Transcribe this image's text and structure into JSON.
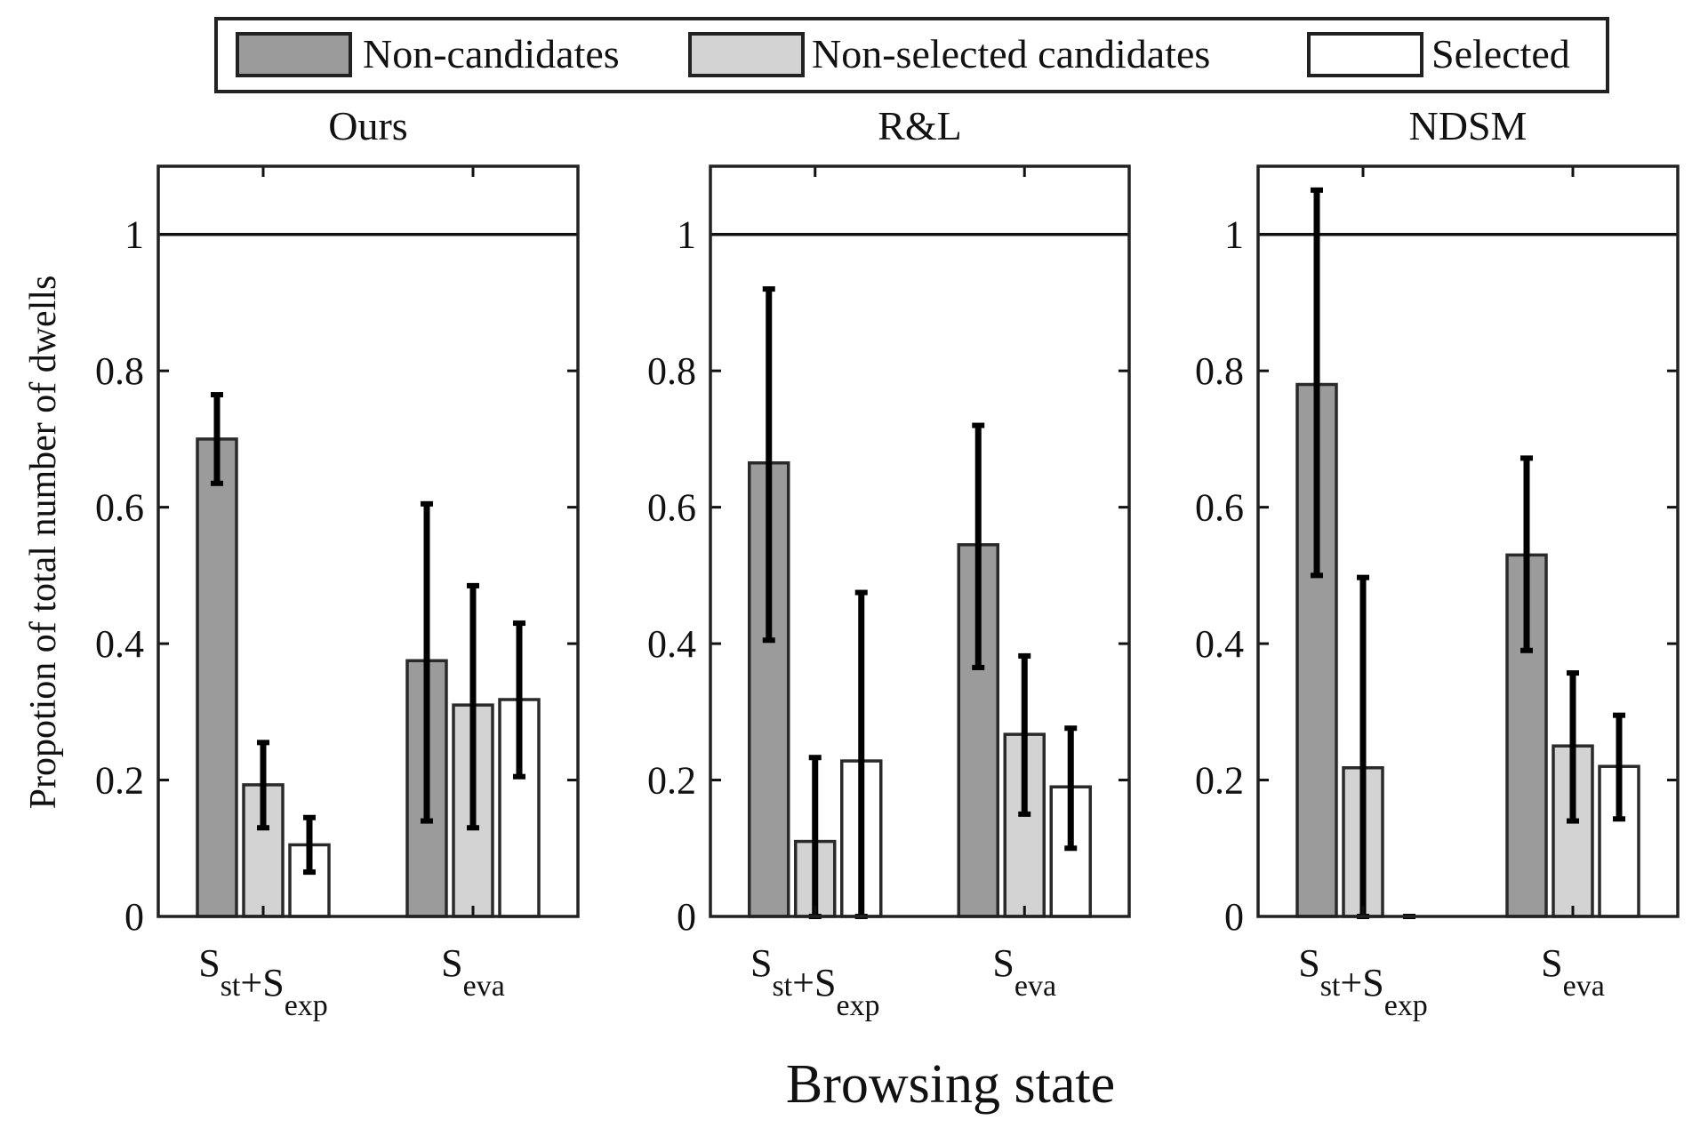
{
  "chart_data": {
    "type": "bar",
    "xlabel": "Browsing state",
    "ylabel": "Propotion of total number of dwells",
    "ylim": [
      0,
      1.1
    ],
    "yticks": [
      "0",
      "0.2",
      "0.4",
      "0.6",
      "0.8",
      "1"
    ],
    "reference_line": 1,
    "legend": {
      "placement": "top",
      "entries": [
        {
          "name": "Non-candidates",
          "color": "#9b9b9b"
        },
        {
          "name": "Non-selected candidates",
          "color": "#d3d3d3"
        },
        {
          "name": "Selected",
          "color": "#ffffff"
        }
      ]
    },
    "categories": [
      {
        "parts": [
          {
            "main": "S",
            "sub": "st"
          },
          {
            "main": "+S",
            "sub": "exp"
          }
        ]
      },
      {
        "parts": [
          {
            "main": "S",
            "sub": "eva"
          }
        ]
      }
    ],
    "panels": [
      {
        "title": "Ours",
        "series": [
          {
            "name": "Non-candidates",
            "values": [
              0.7,
              0.375
            ],
            "err_low": [
              0.635,
              0.14
            ],
            "err_high": [
              0.765,
              0.605
            ]
          },
          {
            "name": "Non-selected candidates",
            "values": [
              0.193,
              0.31
            ],
            "err_low": [
              0.13,
              0.13
            ],
            "err_high": [
              0.255,
              0.485
            ]
          },
          {
            "name": "Selected",
            "values": [
              0.105,
              0.318
            ],
            "err_low": [
              0.065,
              0.205
            ],
            "err_high": [
              0.145,
              0.43
            ]
          }
        ]
      },
      {
        "title": "R&L",
        "series": [
          {
            "name": "Non-candidates",
            "values": [
              0.665,
              0.545
            ],
            "err_low": [
              0.405,
              0.365
            ],
            "err_high": [
              0.92,
              0.72
            ]
          },
          {
            "name": "Non-selected candidates",
            "values": [
              0.11,
              0.267
            ],
            "err_low": [
              0.0,
              0.15
            ],
            "err_high": [
              0.233,
              0.382
            ]
          },
          {
            "name": "Selected",
            "values": [
              0.228,
              0.19
            ],
            "err_low": [
              0.0,
              0.1
            ],
            "err_high": [
              0.475,
              0.276
            ]
          }
        ]
      },
      {
        "title": "NDSM",
        "series": [
          {
            "name": "Non-candidates",
            "values": [
              0.78,
              0.53
            ],
            "err_low": [
              0.5,
              0.39
            ],
            "err_high": [
              1.065,
              0.672
            ]
          },
          {
            "name": "Non-selected candidates",
            "values": [
              0.218,
              0.25
            ],
            "err_low": [
              0.0,
              0.14
            ],
            "err_high": [
              0.497,
              0.357
            ]
          },
          {
            "name": "Selected",
            "values": [
              0.0,
              0.22
            ],
            "err_low": [
              0.0,
              0.143
            ],
            "err_high": [
              0.0,
              0.295
            ]
          }
        ]
      }
    ]
  }
}
